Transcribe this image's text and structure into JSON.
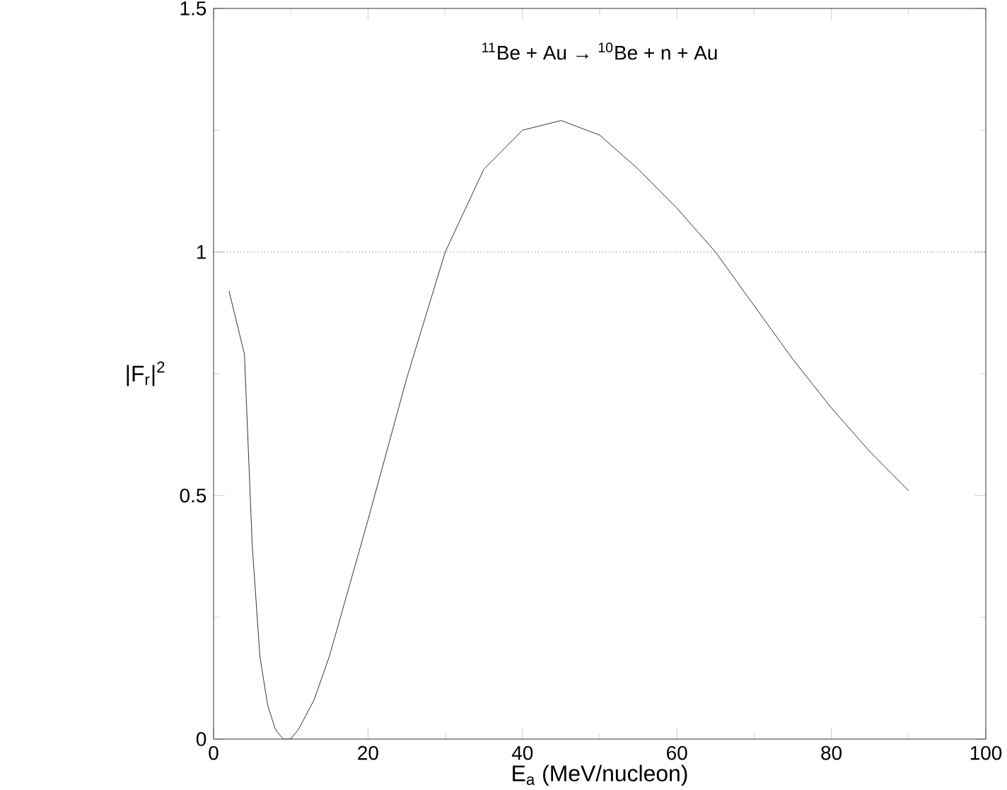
{
  "chart_data": {
    "type": "line",
    "title": "$^{11}$Be + Au → $^{10}$Be + n + Au",
    "xlabel": "E$_{a}$ (MeV/nucleon)",
    "ylabel": "|F$_{r}$|$^{2}$",
    "xlim": [
      0,
      100
    ],
    "ylim": [
      0,
      1.5
    ],
    "xticks": [
      0,
      20,
      40,
      60,
      80,
      100
    ],
    "yticks": [
      0,
      0.5,
      1,
      1.5
    ],
    "series": [
      {
        "color": "#000000",
        "x": [
          2,
          4,
          5,
          6,
          7,
          8,
          9,
          10,
          11,
          13,
          15,
          20,
          25,
          30,
          35,
          40,
          45,
          50,
          55,
          60,
          65,
          70,
          75,
          80,
          85,
          90
        ],
        "values": [
          0.92,
          0.79,
          0.4,
          0.17,
          0.07,
          0.02,
          0.0,
          0.0,
          0.02,
          0.08,
          0.17,
          0.45,
          0.74,
          1.0,
          1.17,
          1.25,
          1.27,
          1.24,
          1.17,
          1.09,
          1.0,
          0.89,
          0.78,
          0.68,
          0.59,
          0.51
        ]
      }
    ],
    "ref_lines": [
      {
        "axis": "y",
        "value": 1,
        "line_style": "dotted",
        "color": "#000000"
      }
    ],
    "grid": false,
    "marker": "none",
    "line_style": "solid"
  }
}
